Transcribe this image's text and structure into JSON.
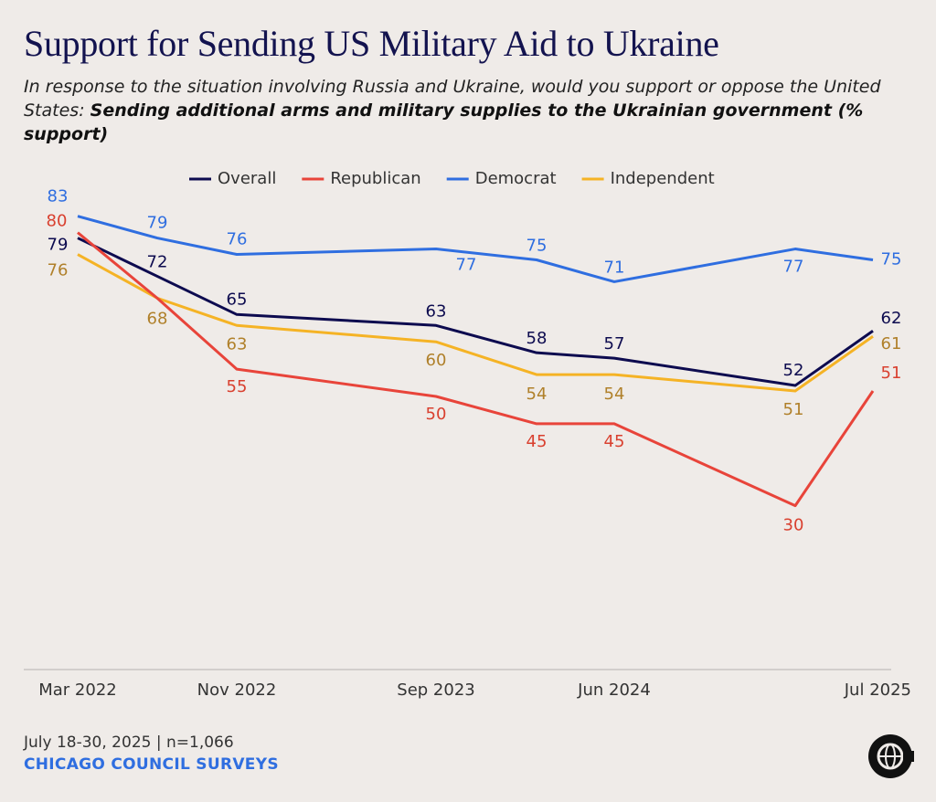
{
  "chart_data": {
    "type": "line",
    "title": "Support for Sending US Military Aid to Ukraine",
    "subtitle": "In response to the situation involving Russia and Ukraine, would you support or oppose the United States: ",
    "subtitle_emphasis": "Sending additional arms and military supplies to the Ukrainian government (% support)",
    "categories": [
      "Mar 2022",
      null,
      "Nov 2022",
      "Sep 2023",
      null,
      "Jun 2024",
      null,
      "Jul 2025"
    ],
    "ylim": [
      0,
      100
    ],
    "legend": "top",
    "series": [
      {
        "name": "Overall",
        "color": "#0d0b4f",
        "values": [
          79,
          72,
          65,
          63,
          58,
          57,
          52,
          62
        ]
      },
      {
        "name": "Republican",
        "color": "#e8443a",
        "values": [
          80,
          68,
          55,
          50,
          45,
          45,
          30,
          51
        ],
        "value_labels": [
          "80",
          null,
          "55",
          "50",
          "45",
          "45",
          "30",
          "51"
        ]
      },
      {
        "name": "Democrat",
        "color": "#2f6ee0",
        "values": [
          83,
          79,
          76,
          77,
          75,
          71,
          77,
          75
        ]
      },
      {
        "name": "Independent",
        "color": "#f5b325",
        "values": [
          76,
          68,
          63,
          60,
          54,
          54,
          51,
          61
        ]
      }
    ],
    "note": "July 18-30, 2025 | n=1,066",
    "source": "CHICAGO COUNCIL SURVEYS"
  }
}
